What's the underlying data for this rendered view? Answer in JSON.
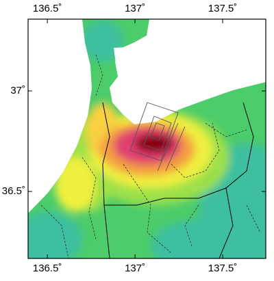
{
  "chart_data": {
    "type": "map",
    "xlim": [
      136.39,
      137.746
    ],
    "ylim": [
      36.167,
      37.357
    ],
    "xticks": [
      {
        "value": 136.5,
        "label": "136.5˚"
      },
      {
        "value": 137,
        "label": "137˚"
      },
      {
        "value": 137.5,
        "label": "137.5˚"
      }
    ],
    "yticks": [
      {
        "value": 36.5,
        "label": "36.5˚"
      },
      {
        "value": 37,
        "label": "37˚"
      }
    ]
  }
}
